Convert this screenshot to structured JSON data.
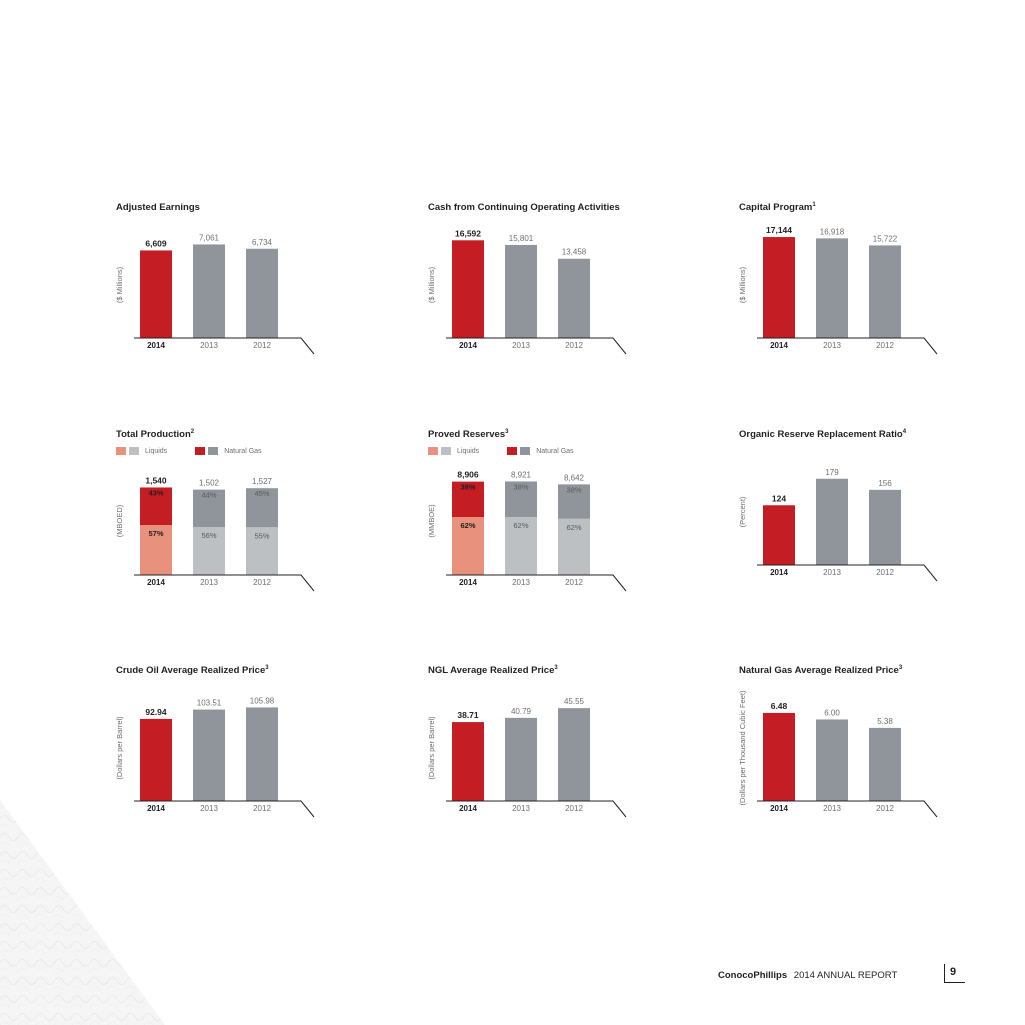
{
  "footer": {
    "brand": "ConocoPhillips",
    "report": "2014 ANNUAL REPORT",
    "page": "9"
  },
  "colors": {
    "highlight": "#c41e24",
    "prior": "#8f959b",
    "liquids_highlight": "#e8917d",
    "liquids_prior": "#bcc0c3",
    "axis": "#231f20"
  },
  "chart_data": [
    {
      "type": "bar",
      "title": "Adjusted Earnings",
      "footnote": "",
      "ylabel": "($ Millions)",
      "categories": [
        "2014",
        "2013",
        "2012"
      ],
      "values": [
        6609,
        7061,
        6734
      ],
      "value_labels": [
        "6,609",
        "7,061",
        "6,734"
      ],
      "ylim": [
        0,
        8000
      ]
    },
    {
      "type": "bar",
      "title": "Cash from Continuing Operating Activities",
      "footnote": "",
      "ylabel": "($ Millions)",
      "categories": [
        "2014",
        "2013",
        "2012"
      ],
      "values": [
        16592,
        15801,
        13458
      ],
      "value_labels": [
        "16,592",
        "15,801",
        "13,458"
      ],
      "ylim": [
        0,
        18000
      ]
    },
    {
      "type": "bar",
      "title": "Capital Program",
      "footnote": "1",
      "ylabel": "($ Millions)",
      "categories": [
        "2014",
        "2013",
        "2012"
      ],
      "values": [
        17144,
        16918,
        15722
      ],
      "value_labels": [
        "17,144",
        "16,918",
        "15,722"
      ],
      "ylim": [
        0,
        18000
      ]
    },
    {
      "type": "bar",
      "stacked": true,
      "title": "Total Production",
      "footnote": "2",
      "ylabel": "(MBOED)",
      "categories": [
        "2014",
        "2013",
        "2012"
      ],
      "totals": [
        1540,
        1502,
        1527
      ],
      "total_labels": [
        "1,540",
        "1,502",
        "1,527"
      ],
      "series": [
        {
          "name": "Liquids",
          "percents": [
            57,
            56,
            55
          ],
          "labels": [
            "57%",
            "56%",
            "55%"
          ]
        },
        {
          "name": "Natural Gas",
          "percents": [
            43,
            44,
            45
          ],
          "labels": [
            "43%",
            "44%",
            "45%"
          ]
        }
      ],
      "ylim": [
        0,
        1900
      ]
    },
    {
      "type": "bar",
      "stacked": true,
      "title": "Proved Reserves",
      "footnote": "3",
      "ylabel": "(MMBOE)",
      "categories": [
        "2014",
        "2013",
        "2012"
      ],
      "totals": [
        8906,
        8921,
        8642
      ],
      "total_labels": [
        "8,906",
        "8,921",
        "8,642"
      ],
      "series": [
        {
          "name": "Liquids",
          "percents": [
            62,
            62,
            62
          ],
          "labels": [
            "62%",
            "62%",
            "62%"
          ]
        },
        {
          "name": "Natural Gas",
          "percents": [
            38,
            38,
            38
          ],
          "labels": [
            "38%",
            "38%",
            "38%"
          ]
        }
      ],
      "ylim": [
        0,
        10300
      ]
    },
    {
      "type": "bar",
      "title": "Organic Reserve Replacement Ratio",
      "footnote": "4",
      "ylabel": "(Percent)",
      "categories": [
        "2014",
        "2013",
        "2012"
      ],
      "values": [
        124,
        179,
        156
      ],
      "value_labels": [
        "124",
        "179",
        "156"
      ],
      "ylim": [
        0,
        220
      ]
    },
    {
      "type": "bar",
      "title": "Crude Oil Average Realized Price",
      "footnote": "3",
      "ylabel": "(Dollars per Barrel)",
      "categories": [
        "2014",
        "2013",
        "2012"
      ],
      "values": [
        92.94,
        103.51,
        105.98
      ],
      "value_labels": [
        "92.94",
        "103.51",
        "105.98"
      ],
      "ylim": [
        0,
        120
      ]
    },
    {
      "type": "bar",
      "title": "NGL Average Realized Price",
      "footnote": "3",
      "ylabel": "(Dollars per Barrel)",
      "categories": [
        "2014",
        "2013",
        "2012"
      ],
      "values": [
        38.71,
        40.79,
        45.55
      ],
      "value_labels": [
        "38.71",
        "40.79",
        "45.55"
      ],
      "ylim": [
        0,
        52
      ]
    },
    {
      "type": "bar",
      "title": "Natural Gas Average Realized Price",
      "footnote": "3",
      "ylabel": "(Dollars per Thousand Cubic Feet)",
      "categories": [
        "2014",
        "2013",
        "2012"
      ],
      "values": [
        6.48,
        6.0,
        5.38
      ],
      "value_labels": [
        "6.48",
        "6.00",
        "5.38"
      ],
      "ylim": [
        0,
        7.8
      ]
    }
  ]
}
